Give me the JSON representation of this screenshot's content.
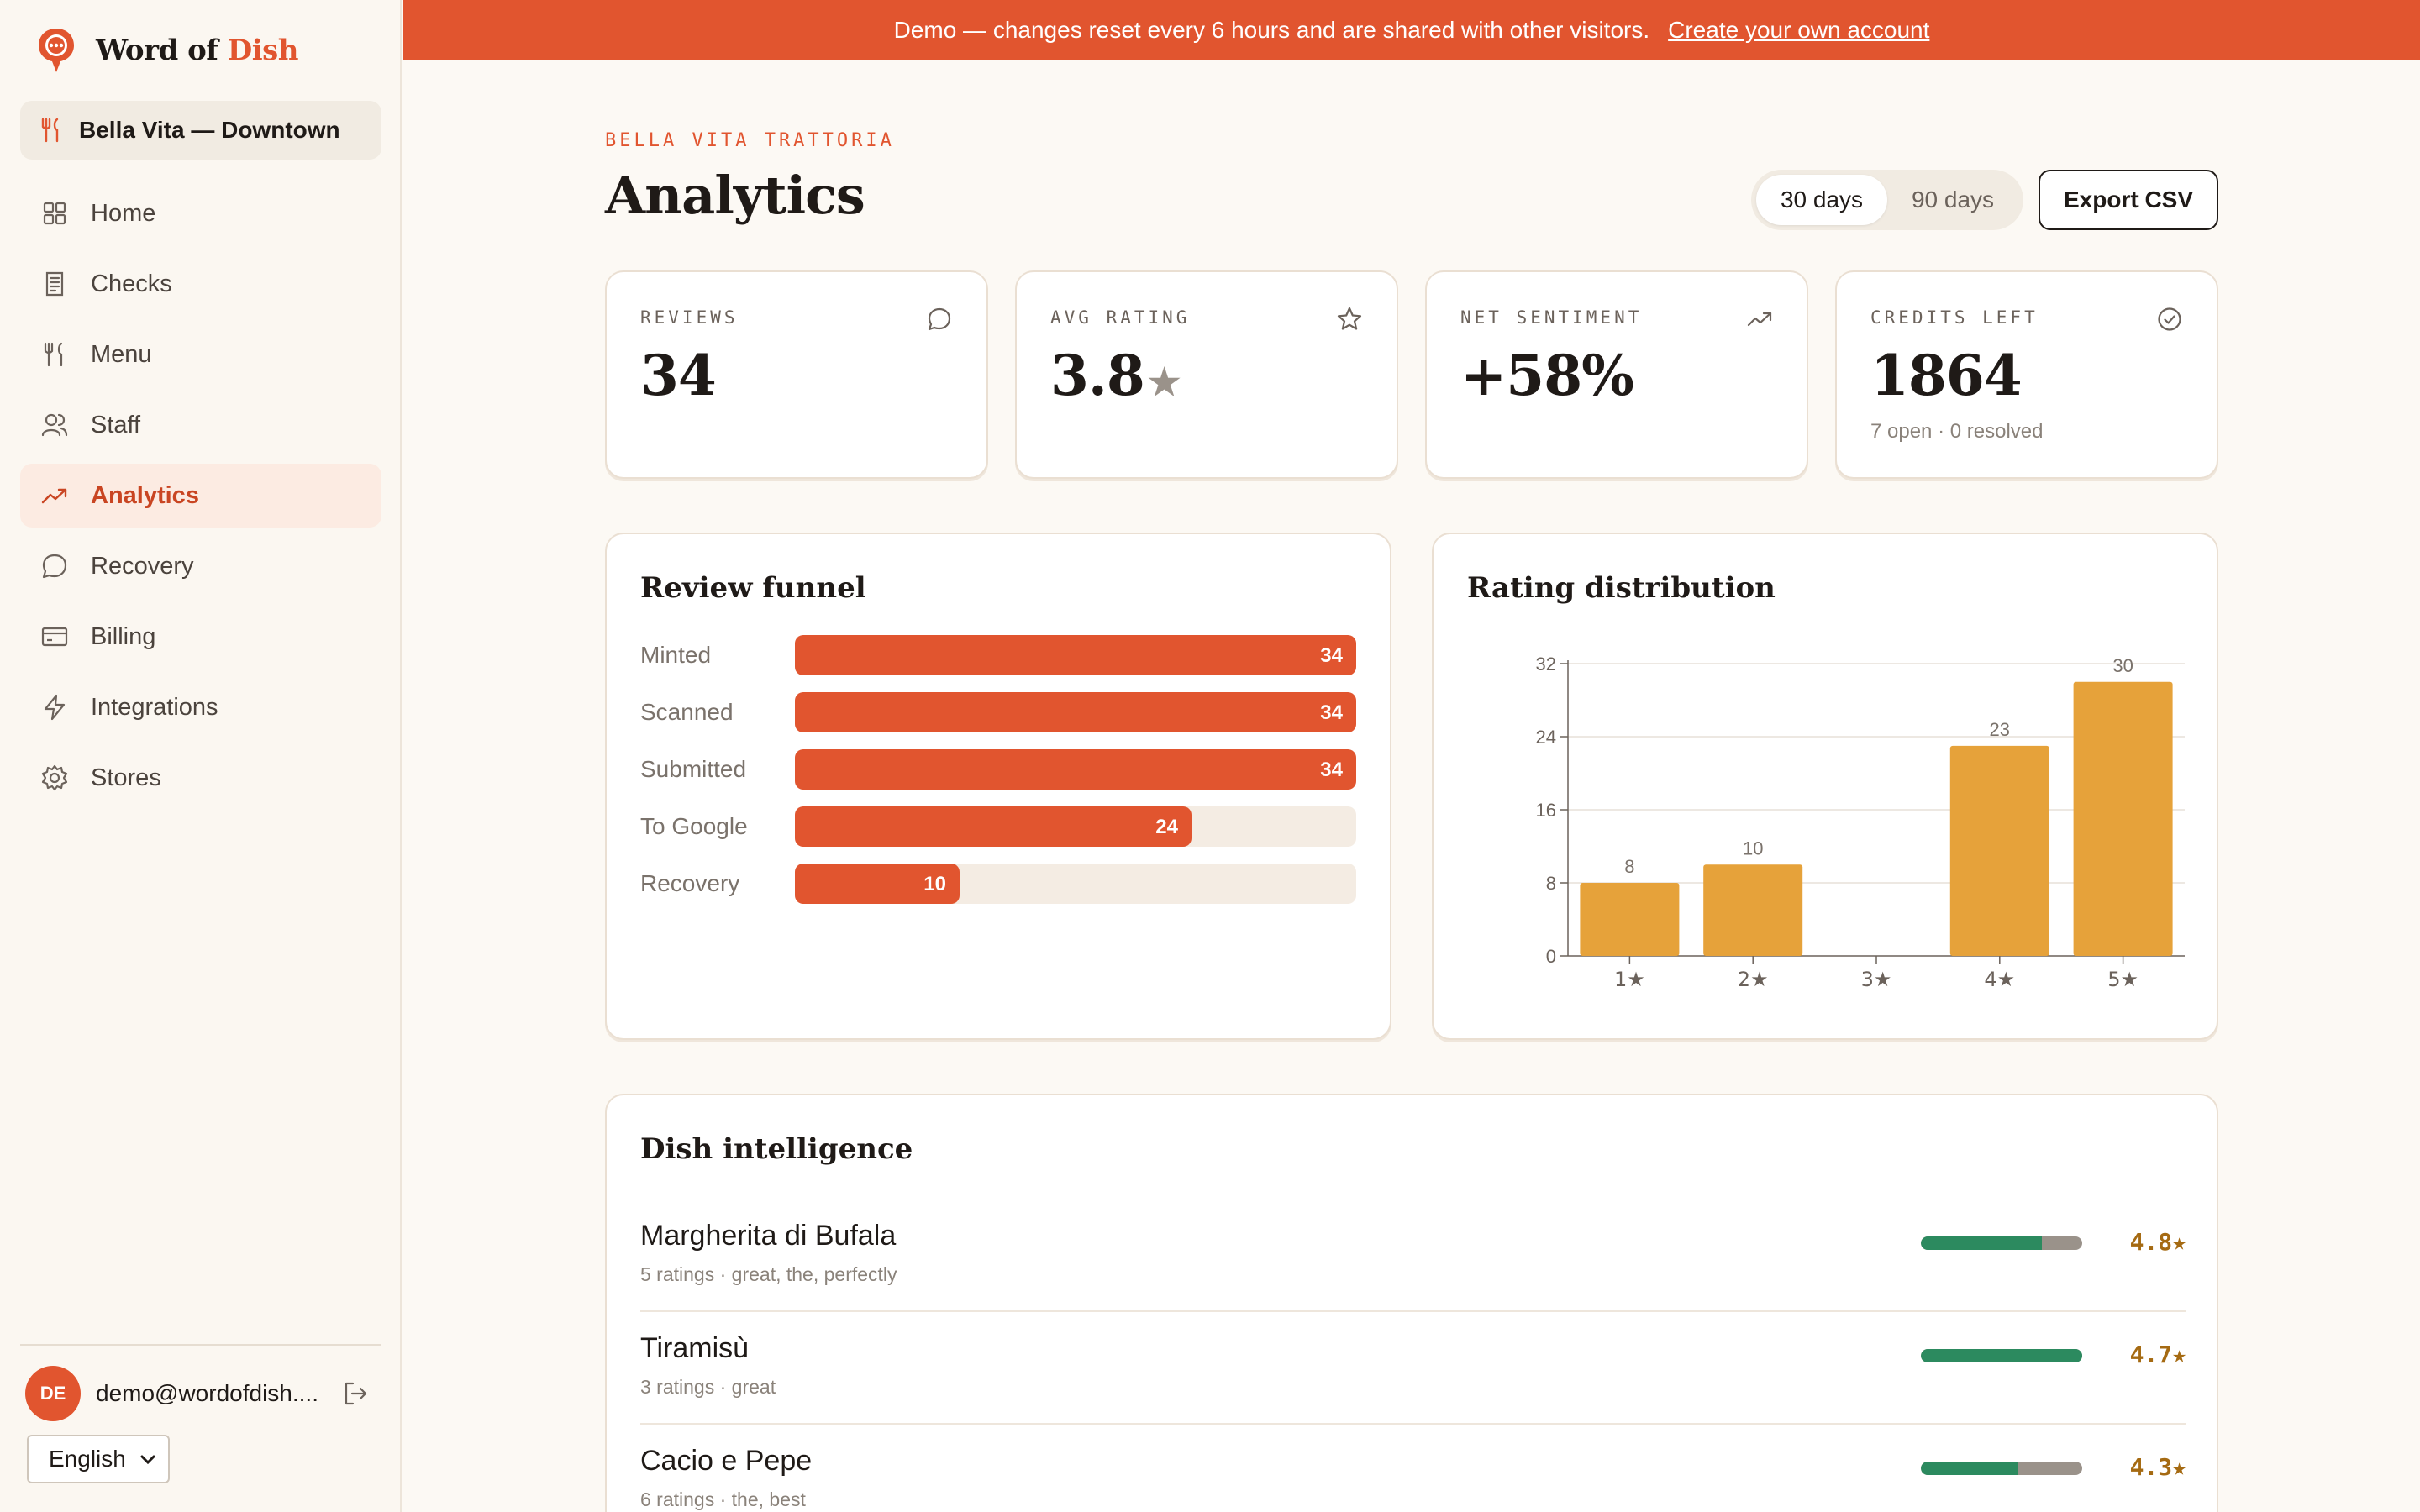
{
  "brand": {
    "name_part1": "Word of",
    "name_part2": "Dish"
  },
  "store": {
    "selected": "Bella Vita — Downtown"
  },
  "nav": [
    {
      "label": "Home",
      "icon": "grid-icon",
      "active": false
    },
    {
      "label": "Checks",
      "icon": "receipt-icon",
      "active": false
    },
    {
      "label": "Menu",
      "icon": "fork-knife-icon",
      "active": false
    },
    {
      "label": "Staff",
      "icon": "users-icon",
      "active": false
    },
    {
      "label": "Analytics",
      "icon": "trend-icon",
      "active": true
    },
    {
      "label": "Recovery",
      "icon": "chat-bubble-icon",
      "active": false
    },
    {
      "label": "Billing",
      "icon": "credit-card-icon",
      "active": false
    },
    {
      "label": "Integrations",
      "icon": "bolt-icon",
      "active": false
    },
    {
      "label": "Stores",
      "icon": "gear-icon",
      "active": false
    }
  ],
  "user": {
    "initials": "DE",
    "email": "demo@wordofdish...."
  },
  "language": {
    "selected": "English"
  },
  "banner": {
    "text": "Demo — changes reset every 6 hours and are shared with other visitors.",
    "link": "Create your own account"
  },
  "header": {
    "eyebrow": "BELLA VITA TRATTORIA",
    "title": "Analytics",
    "ranges": [
      "30 days",
      "90 days"
    ],
    "active_range": "30 days",
    "export_label": "Export CSV"
  },
  "stats": [
    {
      "label": "REVIEWS",
      "value": "34",
      "icon": "chat-bubble-icon",
      "sub": ""
    },
    {
      "label": "AVG RATING",
      "value": "3.8",
      "icon": "star-icon",
      "suffix": "★",
      "sub": ""
    },
    {
      "label": "NET SENTIMENT",
      "value": "+58%",
      "icon": "trend-up-icon",
      "sub": ""
    },
    {
      "label": "CREDITS LEFT",
      "value": "1864",
      "icon": "check-circle-icon",
      "sub": "7 open · 0 resolved"
    }
  ],
  "funnel": {
    "title": "Review funnel",
    "max": 34,
    "rows": [
      {
        "label": "Minted",
        "value": 34
      },
      {
        "label": "Scanned",
        "value": 34
      },
      {
        "label": "Submitted",
        "value": 34
      },
      {
        "label": "To Google",
        "value": 24
      },
      {
        "label": "Recovery",
        "value": 10
      }
    ]
  },
  "chart_data": {
    "type": "bar",
    "title": "Rating distribution",
    "categories": [
      "1★",
      "2★",
      "3★",
      "4★",
      "5★"
    ],
    "values": [
      8,
      10,
      0,
      23,
      30
    ],
    "data_labels": [
      "8",
      "10",
      "",
      "23",
      "30"
    ],
    "yticks": [
      0,
      8,
      16,
      24,
      32
    ],
    "ylim": [
      0,
      32
    ],
    "grid": true,
    "color": "#e6a23a"
  },
  "dishes": {
    "title": "Dish intelligence",
    "items": [
      {
        "name": "Margherita di Bufala",
        "meta": "5 ratings · great, the, perfectly",
        "score": "4.8★",
        "positive_share": 0.75
      },
      {
        "name": "Tiramisù",
        "meta": "3 ratings · great",
        "score": "4.7★",
        "positive_share": 1.0
      },
      {
        "name": "Cacio e Pepe",
        "meta": "6 ratings · the, best",
        "score": "4.3★",
        "positive_share": 0.6
      }
    ]
  },
  "colors": {
    "accent": "#e1552f",
    "bar": "#e6a23a",
    "positive": "#2c8a5f",
    "neutral": "#9a928a"
  }
}
